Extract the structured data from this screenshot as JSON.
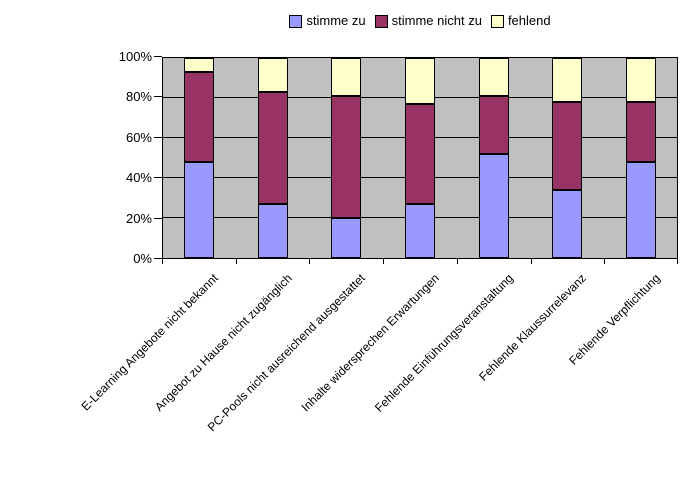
{
  "chart_data": {
    "type": "bar",
    "subtype": "stacked-100-percent",
    "title": "",
    "xlabel": "",
    "ylabel": "",
    "categories": [
      "E-Learning Angebote nicht bekannt",
      "Angebot zu Hause nicht zugänglich",
      "PC-Pools nicht ausreichend ausgestattet",
      "Inhalte widersprechen Erwartungen",
      "Fehlende Einführungsveranstaltung",
      "Fehlende Klaussurrelevanz",
      "Fehlende Verpflichtung"
    ],
    "series": [
      {
        "name": "stimme zu",
        "color": "#9999FF",
        "values": [
          48,
          27,
          20,
          27,
          52,
          34,
          48
        ]
      },
      {
        "name": "stimme nicht zu",
        "color": "#993366",
        "values": [
          45,
          56,
          61,
          50,
          29,
          44,
          30
        ]
      },
      {
        "name": "fehlend",
        "color": "#FFFFCC",
        "values": [
          7,
          17,
          19,
          23,
          19,
          22,
          22
        ]
      }
    ],
    "y_ticks": [
      {
        "value": 0,
        "label": "0%"
      },
      {
        "value": 20,
        "label": "20%"
      },
      {
        "value": 40,
        "label": "40%"
      },
      {
        "value": 60,
        "label": "60%"
      },
      {
        "value": 80,
        "label": "80%"
      },
      {
        "value": 100,
        "label": "100%"
      }
    ],
    "ylim": [
      0,
      100
    ],
    "grid": "horizontal",
    "legend_position": "top-center",
    "plot_background": "#C0C0C0",
    "line_color": "#000000"
  }
}
